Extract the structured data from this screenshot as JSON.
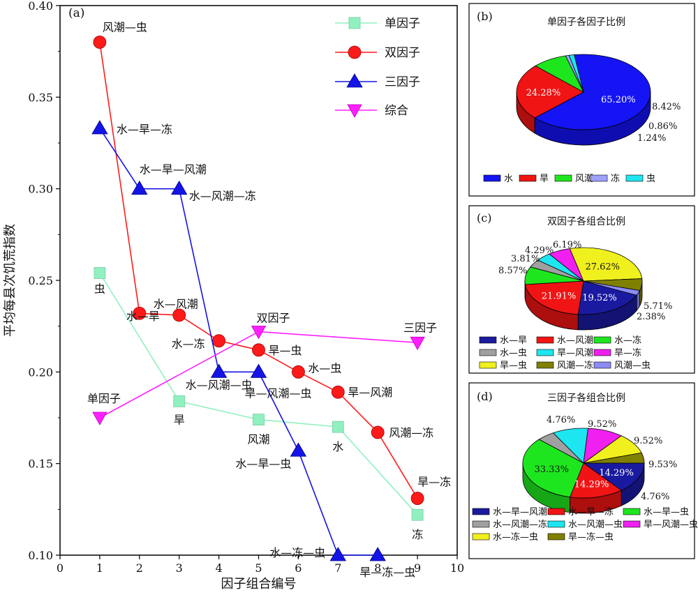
{
  "chart_data": [
    {
      "panel": "(a)",
      "type": "line",
      "xlabel": "因子组合编号",
      "ylabel": "平均每县次饥荒指数",
      "xlim": [
        0,
        10
      ],
      "ylim": [
        0.1,
        0.4
      ],
      "xticks": [
        "0",
        "1",
        "2",
        "3",
        "4",
        "5",
        "6",
        "7",
        "8",
        "9",
        "10"
      ],
      "yticks": [
        "0.10",
        "0.15",
        "0.20",
        "0.25",
        "0.30",
        "0.35",
        "0.40"
      ],
      "legend_position": "top-right",
      "series": [
        {
          "name": "单因子",
          "color": "#90f0c0",
          "marker": "square",
          "x": [
            1,
            3,
            5,
            7,
            9
          ],
          "y": [
            0.254,
            0.184,
            0.174,
            0.17,
            0.122
          ],
          "labels": [
            "虫",
            "旱",
            "风潮",
            "水",
            "冻"
          ]
        },
        {
          "name": "双因子",
          "color": "#ff1a1a",
          "marker": "circle",
          "x": [
            1,
            2,
            3,
            4,
            5,
            6,
            7,
            8,
            9
          ],
          "y": [
            0.38,
            0.232,
            0.231,
            0.217,
            0.212,
            0.2,
            0.189,
            0.167,
            0.131
          ],
          "labels": [
            "风潮—虫",
            "水—风潮",
            "水—旱",
            "水—冻",
            "旱—虫",
            "水—虫",
            "旱—风潮",
            "风潮—冻",
            "旱—冻"
          ]
        },
        {
          "name": "三因子",
          "color": "#1414e6",
          "marker": "triangle-up",
          "x": [
            1,
            2,
            3,
            4,
            5,
            6,
            7,
            8
          ],
          "y": [
            0.333,
            0.3,
            0.3,
            0.2,
            0.2,
            0.157,
            0.1,
            0.1
          ],
          "labels": [
            "水—旱—冻",
            "水—旱—风潮",
            "水—风潮—冻",
            "水—风潮—虫",
            "旱—风潮—虫",
            "水—旱—虫",
            "水—冻—虫",
            "旱—冻—虫"
          ]
        },
        {
          "name": "综合",
          "color": "#ff20ff",
          "marker": "triangle-down",
          "x": [
            1,
            5,
            9
          ],
          "y": [
            0.175,
            0.222,
            0.216
          ],
          "labels": [
            "单因子",
            "双因子",
            "三因子"
          ]
        }
      ]
    },
    {
      "panel": "(b)",
      "type": "pie",
      "title": "单因子各因子比例",
      "categories": [
        "水",
        "旱",
        "风潮",
        "冻",
        "虫"
      ],
      "values": [
        65.2,
        24.28,
        8.42,
        0.86,
        1.24
      ],
      "value_labels": [
        "65.20%",
        "24.28%",
        "8.42%",
        "0.86%",
        "1.24%"
      ],
      "colors": [
        "#1414f5",
        "#f01414",
        "#1ee61e",
        "#a0a0ff",
        "#1ee6f0"
      ]
    },
    {
      "panel": "(c)",
      "type": "pie",
      "title": "双因子各组合比例",
      "categories": [
        "水—旱",
        "水—风潮",
        "水—冻",
        "水—虫",
        "旱—风潮",
        "旱—冻",
        "旱—虫",
        "风潮—冻",
        "风潮—虫"
      ],
      "values": [
        19.52,
        21.91,
        8.57,
        3.81,
        4.29,
        6.19,
        27.62,
        5.71,
        2.38
      ],
      "value_labels": [
        "19.52%",
        "21.91%",
        "8.57%",
        "3.81%",
        "4.29%",
        "6.19%",
        "27.62%",
        "5.71%",
        "2.38%"
      ],
      "colors": [
        "#1a1aa0",
        "#f01414",
        "#1ee61e",
        "#a0a0a0",
        "#1ee6f0",
        "#f020f0",
        "#f0f01e",
        "#808000",
        "#8c8cf5"
      ]
    },
    {
      "panel": "(d)",
      "type": "pie",
      "title": "三因子各组合比例",
      "categories": [
        "水—旱—风潮",
        "水—旱—冻",
        "水—旱—虫",
        "水—风潮—冻",
        "水—风潮—虫",
        "旱—风潮—虫",
        "水—冻—虫",
        "旱—冻—虫"
      ],
      "values": [
        14.29,
        14.29,
        33.33,
        4.76,
        9.52,
        9.52,
        9.53,
        4.76
      ],
      "value_labels": [
        "14.29%",
        "14.29%",
        "33.33%",
        "4.76%",
        "9.52%",
        "9.52%",
        "9.53%",
        "4.76%"
      ],
      "colors": [
        "#1a1aa0",
        "#f01414",
        "#1ee61e",
        "#a0a0a0",
        "#1ee6f0",
        "#f020f0",
        "#f0f01e",
        "#808000"
      ]
    }
  ]
}
